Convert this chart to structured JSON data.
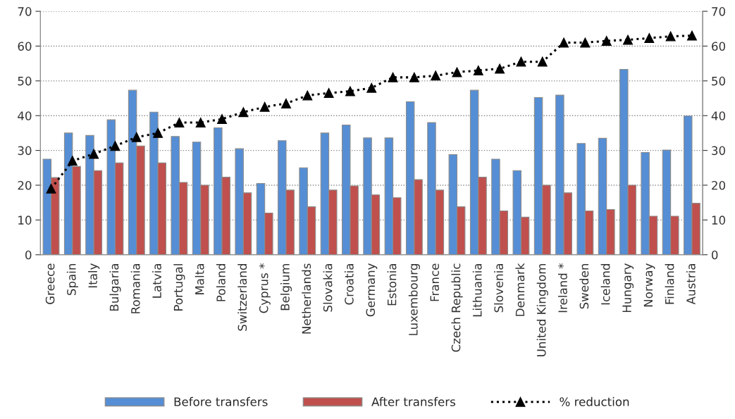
{
  "chart_data": {
    "type": "bar",
    "categories": [
      "Greece",
      "Spain",
      "Italy",
      "Bulgaria",
      "Romania",
      "Latvia",
      "Portugal",
      "Malta",
      "Poland",
      "Switzerland",
      "Cyprus *",
      "Belgium",
      "Netherlands",
      "Slovakia",
      "Croatia",
      "Germany",
      "Estonia",
      "Luxembourg",
      "France",
      "Czech Republic",
      "Lithuania",
      "Slovenia",
      "Denmark",
      "United Kingdom",
      "Ireland *",
      "Sweden",
      "Iceland",
      "Hungary",
      "Norway",
      "Finland",
      "Austria"
    ],
    "series": [
      {
        "name": "Before transfers",
        "color": "#558ed5",
        "values": [
          27.5,
          35,
          34.3,
          38.8,
          47.3,
          41,
          34,
          32.4,
          36.5,
          30.5,
          20.5,
          32.8,
          25,
          35,
          37.3,
          33.6,
          33.6,
          44,
          38,
          28.8,
          47.3,
          27.5,
          24.2,
          45.2,
          45.9,
          32,
          33.5,
          53.3,
          29.4,
          30.1,
          39.9
        ]
      },
      {
        "name": "After transfers",
        "color": "#c0504d",
        "values": [
          22.2,
          25.4,
          24.2,
          26.4,
          31.3,
          26.4,
          20.8,
          20,
          22.3,
          17.8,
          12,
          18.6,
          13.8,
          18.6,
          19.8,
          17.2,
          16.4,
          21.6,
          18.6,
          13.8,
          22.3,
          12.6,
          10.8,
          20,
          17.8,
          12.6,
          13,
          20,
          11.1,
          11.1,
          14.8
        ]
      },
      {
        "name": "% reduction",
        "type": "line",
        "color": "#000000",
        "marker": "triangle",
        "line_style": "dotted",
        "values": [
          19,
          27,
          29,
          31.3,
          33.8,
          35,
          38,
          38,
          39,
          41,
          42.5,
          43.5,
          45.8,
          46.5,
          47,
          48,
          51,
          51,
          51.5,
          52.5,
          53,
          53.5,
          55.5,
          55.5,
          61,
          61,
          61.5,
          61.8,
          62.3,
          62.8,
          63
        ]
      }
    ],
    "ylim": [
      0,
      70
    ],
    "yticks": [
      0,
      10,
      20,
      30,
      40,
      50,
      60,
      70
    ],
    "y2lim": [
      0,
      70
    ],
    "y2ticks": [
      0,
      10,
      20,
      30,
      40,
      50,
      60,
      70
    ],
    "grid": "y",
    "legend": "bottom"
  }
}
